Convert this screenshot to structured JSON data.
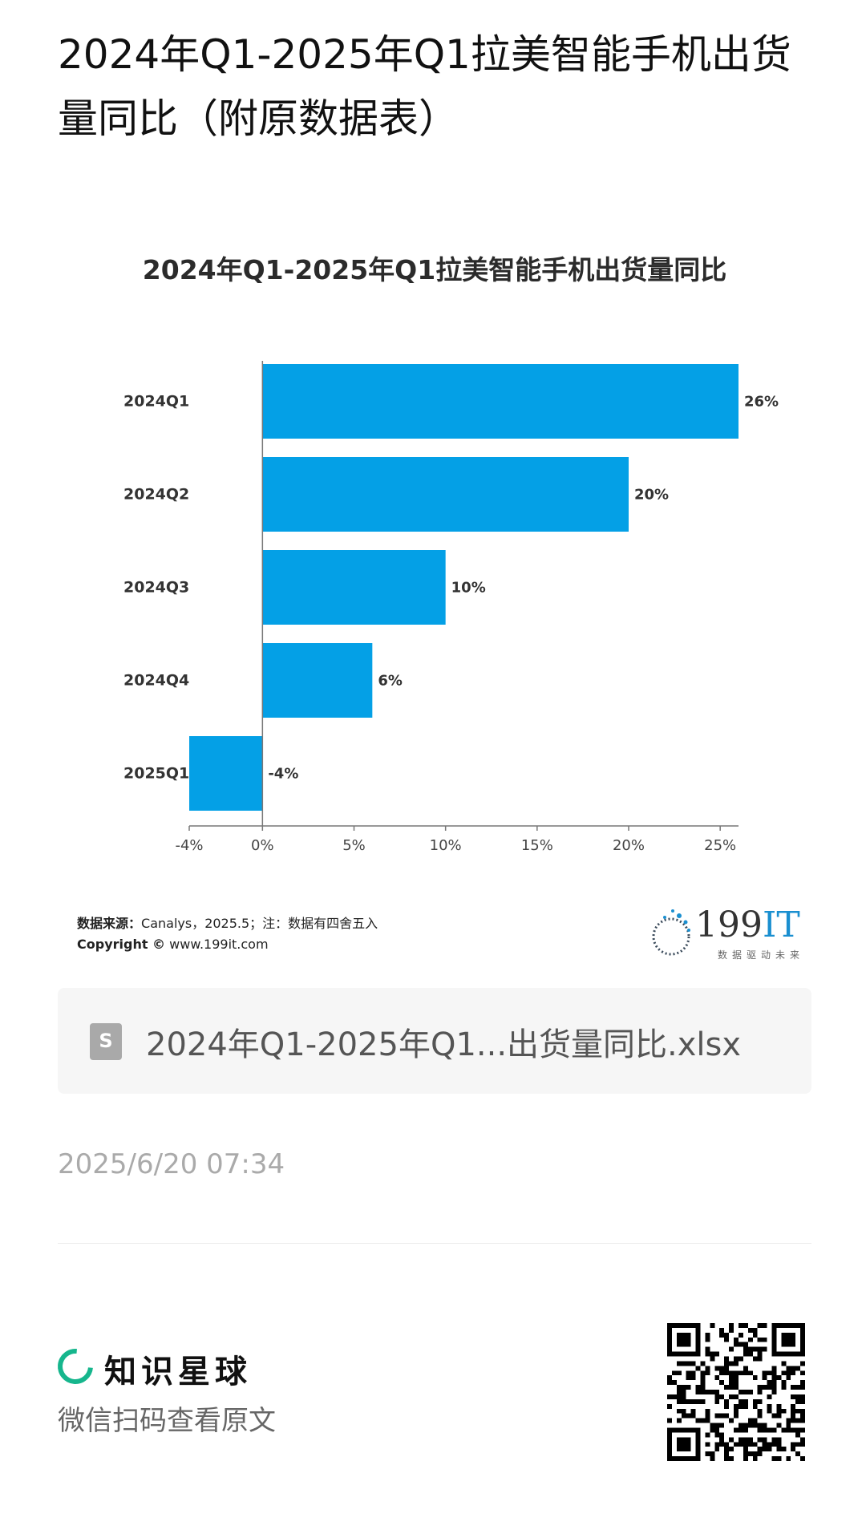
{
  "page": {
    "title": "2024年Q1-2025年Q1拉美智能手机出货量同比（附原数据表）"
  },
  "chart_data": {
    "type": "bar",
    "orientation": "horizontal",
    "title": "2024年Q1-2025年Q1拉美智能手机出货量同比",
    "categories": [
      "2024Q1",
      "2024Q2",
      "2024Q3",
      "2024Q4",
      "2025Q1"
    ],
    "values": [
      26,
      20,
      10,
      6,
      -4
    ],
    "value_labels": [
      "26%",
      "20%",
      "10%",
      "6%",
      "-4%"
    ],
    "xlim": [
      -4,
      26
    ],
    "xticks": [
      -4,
      0,
      5,
      10,
      15,
      20,
      25
    ],
    "xtick_labels": [
      "-4%",
      "0%",
      "5%",
      "10%",
      "15%",
      "20%",
      "25%"
    ],
    "bar_color": "#04a0e6",
    "grid": false,
    "legend": "none"
  },
  "footer": {
    "source_label": "数据来源：",
    "source_text": "Canalys，2025.5；注：数据有四舍五入",
    "copyright_label": "Copyright ©",
    "copyright_text": " www.199it.com"
  },
  "logo": {
    "text_main": "199",
    "text_accent": "IT",
    "slogan": "数据驱动未来"
  },
  "attachment": {
    "file_name": "2024年Q1-2025年Q1...出货量同比.xlsx",
    "icon": "spreadsheet-file-icon"
  },
  "meta": {
    "timestamp": "2025/6/20 07:34"
  },
  "brand": {
    "name": "知识星球",
    "scan_text": "微信扫码查看原文",
    "accent_color": "#16b68d"
  }
}
